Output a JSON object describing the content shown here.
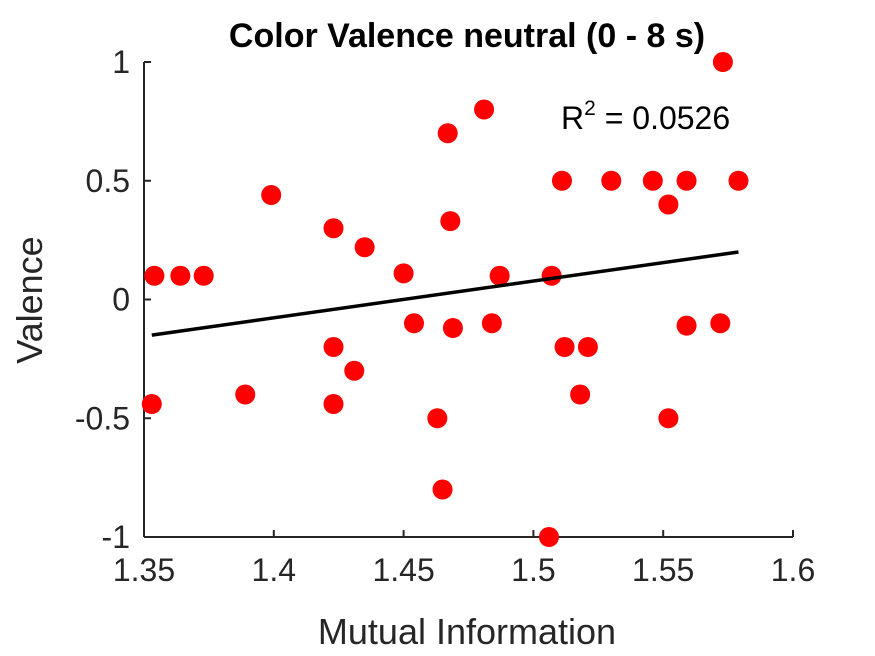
{
  "chart_data": {
    "type": "scatter",
    "title": "Color Valence neutral (0 - 8 s)",
    "xlabel": "Mutual Information",
    "ylabel": "Valence",
    "xlim": [
      1.35,
      1.6
    ],
    "ylim": [
      -1,
      1
    ],
    "xticks": [
      1.35,
      1.4,
      1.45,
      1.5,
      1.55,
      1.6
    ],
    "xtick_labels": [
      "1.35",
      "1.4",
      "1.45",
      "1.5",
      "1.55",
      "1.6"
    ],
    "yticks": [
      1,
      0.5,
      0,
      -0.5,
      -1
    ],
    "ytick_labels": [
      "1",
      "0.5",
      "0",
      "-0.5",
      "-1"
    ],
    "grid": false,
    "point_color": "#ff0000",
    "line_color": "#000000",
    "annotation": {
      "base": "R",
      "sup": "2",
      "rest": " = 0.0526"
    },
    "fit_line": {
      "x": [
        1.353,
        1.579
      ],
      "y": [
        -0.15,
        0.2
      ]
    },
    "points": [
      {
        "x": 1.353,
        "y": -0.44
      },
      {
        "x": 1.354,
        "y": 0.1
      },
      {
        "x": 1.364,
        "y": 0.1
      },
      {
        "x": 1.373,
        "y": 0.1
      },
      {
        "x": 1.389,
        "y": -0.4
      },
      {
        "x": 1.399,
        "y": 0.44
      },
      {
        "x": 1.423,
        "y": 0.3
      },
      {
        "x": 1.423,
        "y": -0.2
      },
      {
        "x": 1.423,
        "y": -0.44
      },
      {
        "x": 1.431,
        "y": -0.3
      },
      {
        "x": 1.435,
        "y": 0.22
      },
      {
        "x": 1.45,
        "y": 0.11
      },
      {
        "x": 1.454,
        "y": -0.1
      },
      {
        "x": 1.463,
        "y": -0.5
      },
      {
        "x": 1.465,
        "y": -0.8
      },
      {
        "x": 1.467,
        "y": 0.7
      },
      {
        "x": 1.468,
        "y": 0.33
      },
      {
        "x": 1.469,
        "y": -0.12
      },
      {
        "x": 1.481,
        "y": 0.8
      },
      {
        "x": 1.484,
        "y": -0.1
      },
      {
        "x": 1.487,
        "y": 0.1
      },
      {
        "x": 1.506,
        "y": -1.0
      },
      {
        "x": 1.507,
        "y": 0.1
      },
      {
        "x": 1.511,
        "y": 0.5
      },
      {
        "x": 1.512,
        "y": -0.2
      },
      {
        "x": 1.518,
        "y": -0.4
      },
      {
        "x": 1.521,
        "y": -0.2
      },
      {
        "x": 1.53,
        "y": 0.5
      },
      {
        "x": 1.546,
        "y": 0.5
      },
      {
        "x": 1.552,
        "y": 0.4
      },
      {
        "x": 1.552,
        "y": -0.5
      },
      {
        "x": 1.559,
        "y": -0.11
      },
      {
        "x": 1.559,
        "y": 0.5
      },
      {
        "x": 1.572,
        "y": -0.1
      },
      {
        "x": 1.573,
        "y": 1.0
      },
      {
        "x": 1.579,
        "y": 0.5
      }
    ]
  }
}
